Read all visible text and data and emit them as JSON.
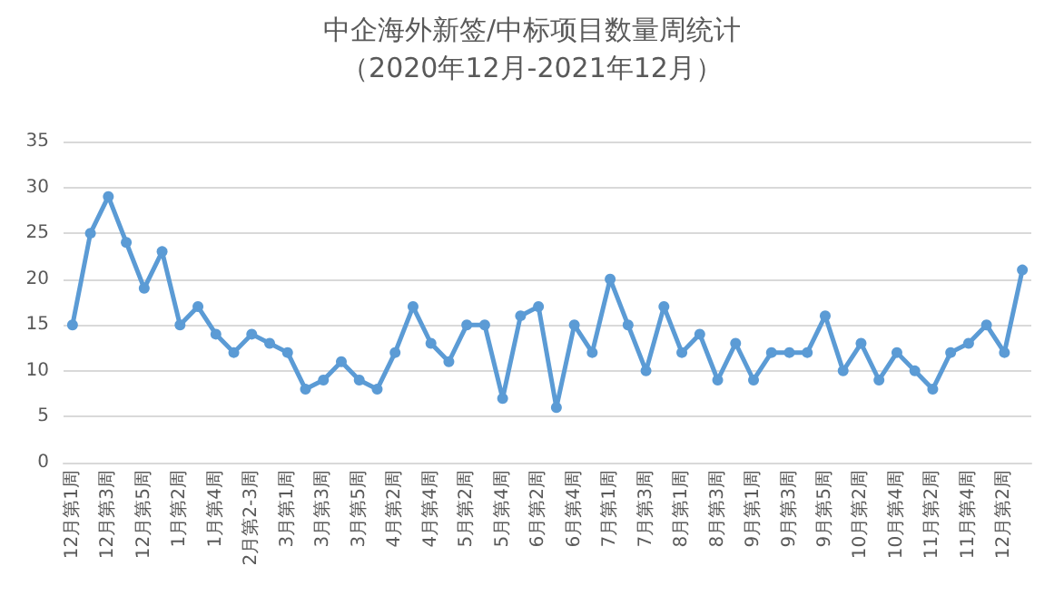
{
  "chart_data": {
    "type": "line",
    "title": "中企海外新签/中标项目数量周统计",
    "subtitle": "（2020年12月-2021年12月）",
    "categories": [
      "12月第1周",
      null,
      "12月第3周",
      null,
      "12月第5周",
      null,
      "1月第2周",
      null,
      "1月第4周",
      null,
      "2月第2-3周",
      null,
      "3月第1周",
      null,
      "3月第3周",
      null,
      "3月第5周",
      null,
      "4月第2周",
      null,
      "4月第4周",
      null,
      "5月第2周",
      null,
      "5月第4周",
      null,
      "6月第2周",
      null,
      "6月第4周",
      null,
      "7月第1周",
      null,
      "7月第3周",
      null,
      "8月第1周",
      null,
      "8月第3周",
      null,
      "9月第1周",
      null,
      "9月第3周",
      null,
      "9月第5周",
      null,
      "10月第2周",
      null,
      "10月第4周",
      null,
      "11月第2周",
      null,
      "11月第4周",
      null,
      "12月第2周",
      null
    ],
    "series": [
      {
        "color": "#5b9bd5",
        "values": [
          15,
          25,
          29,
          24,
          19,
          23,
          15,
          17,
          14,
          12,
          14,
          13,
          12,
          8,
          9,
          11,
          9,
          8,
          12,
          17,
          13,
          11,
          15,
          15,
          7,
          16,
          17,
          6,
          15,
          12,
          20,
          15,
          10,
          17,
          12,
          14,
          9,
          13,
          9,
          12,
          12,
          12,
          16,
          10,
          13,
          9,
          12,
          10,
          8,
          12,
          13,
          15,
          12,
          21
        ]
      }
    ],
    "ylim": [
      0,
      35
    ],
    "yticks": [
      0,
      5,
      10,
      15,
      20,
      25,
      30,
      35
    ],
    "grid": "y",
    "marker": "circle",
    "line_style": "solid"
  }
}
